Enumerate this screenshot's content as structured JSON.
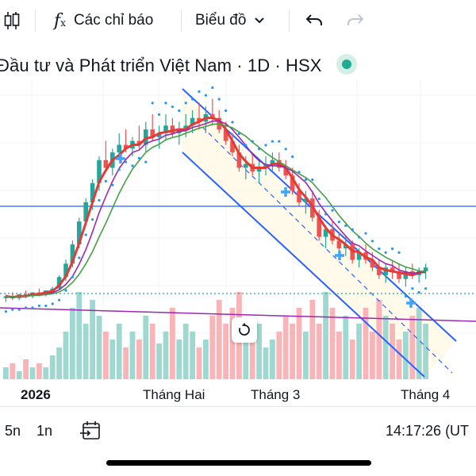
{
  "toolbar": {
    "indicators_label": "Các chỉ báo",
    "chart_type_label": "Biểu đồ",
    "icons": [
      "candles-icon",
      "fx-icon",
      "chevron-down-icon",
      "undo-icon",
      "redo-icon"
    ]
  },
  "symbol": {
    "title": "Đầu tư và Phát triển Việt Nam · 1D · HSX",
    "status_color": "#22ab94"
  },
  "xaxis": {
    "labels": [
      "2026",
      "Tháng Hai",
      "Tháng 3",
      "Tháng 4"
    ]
  },
  "bottom_bar": {
    "range_5y": "5n",
    "range_1y": "1n",
    "time": "14:17:26 (UT"
  },
  "colors": {
    "up": "#26a69a",
    "down": "#ef5350",
    "volume_up": "#9fd8d0",
    "volume_down": "#f8b4b6",
    "channel": "#2962ff",
    "ma_fast": "#e53935",
    "ma_mid": "#9c27b0",
    "ma_slow": "#43a047",
    "horizontal_line": "#2962ff",
    "purple_line": "#9c27b0"
  },
  "chart_data": {
    "type": "candlestick",
    "note_values": "relative price levels (axis not printed)",
    "candles": [
      [
        10,
        12,
        8,
        11
      ],
      [
        11,
        13,
        9,
        10
      ],
      [
        10,
        12,
        9,
        12
      ],
      [
        12,
        14,
        10,
        11
      ],
      [
        11,
        13,
        10,
        13
      ],
      [
        13,
        15,
        11,
        12
      ],
      [
        12,
        14,
        11,
        14
      ],
      [
        14,
        16,
        12,
        15
      ],
      [
        15,
        22,
        14,
        21
      ],
      [
        21,
        30,
        19,
        28
      ],
      [
        28,
        40,
        26,
        38
      ],
      [
        38,
        52,
        36,
        50
      ],
      [
        50,
        62,
        48,
        60
      ],
      [
        60,
        72,
        56,
        70
      ],
      [
        70,
        84,
        66,
        82
      ],
      [
        82,
        92,
        76,
        78
      ],
      [
        78,
        88,
        74,
        86
      ],
      [
        86,
        96,
        82,
        90
      ],
      [
        90,
        98,
        86,
        88
      ],
      [
        88,
        94,
        84,
        92
      ],
      [
        92,
        100,
        88,
        90
      ],
      [
        90,
        102,
        86,
        98
      ],
      [
        98,
        106,
        92,
        94
      ],
      [
        94,
        100,
        88,
        96
      ],
      [
        96,
        106,
        92,
        100
      ],
      [
        100,
        104,
        94,
        96
      ],
      [
        96,
        102,
        90,
        98
      ],
      [
        98,
        106,
        94,
        100
      ],
      [
        100,
        108,
        96,
        104
      ],
      [
        104,
        112,
        98,
        102
      ],
      [
        102,
        110,
        96,
        106
      ],
      [
        106,
        114,
        100,
        104
      ],
      [
        104,
        108,
        96,
        98
      ],
      [
        98,
        102,
        90,
        92
      ],
      [
        92,
        96,
        84,
        86
      ],
      [
        86,
        90,
        76,
        78
      ],
      [
        78,
        84,
        72,
        80
      ],
      [
        80,
        86,
        74,
        76
      ],
      [
        76,
        82,
        70,
        78
      ],
      [
        78,
        84,
        74,
        80
      ],
      [
        80,
        86,
        76,
        82
      ],
      [
        82,
        86,
        76,
        78
      ],
      [
        78,
        82,
        72,
        74
      ],
      [
        74,
        78,
        64,
        66
      ],
      [
        66,
        70,
        58,
        60
      ],
      [
        60,
        66,
        54,
        62
      ],
      [
        62,
        66,
        50,
        52
      ],
      [
        52,
        56,
        40,
        42
      ],
      [
        42,
        48,
        36,
        46
      ],
      [
        46,
        50,
        38,
        40
      ],
      [
        40,
        44,
        34,
        36
      ],
      [
        36,
        42,
        32,
        38
      ],
      [
        38,
        40,
        28,
        30
      ],
      [
        30,
        36,
        26,
        34
      ],
      [
        34,
        38,
        28,
        30
      ],
      [
        30,
        34,
        24,
        26
      ],
      [
        26,
        30,
        20,
        22
      ],
      [
        22,
        28,
        18,
        26
      ],
      [
        26,
        30,
        20,
        24
      ],
      [
        24,
        28,
        18,
        20
      ],
      [
        20,
        26,
        16,
        24
      ],
      [
        24,
        28,
        20,
        22
      ],
      [
        22,
        26,
        18,
        24
      ],
      [
        24,
        28,
        20,
        26
      ]
    ],
    "volume": [
      3,
      4,
      2,
      5,
      3,
      4,
      3,
      6,
      8,
      12,
      18,
      22,
      14,
      20,
      16,
      12,
      10,
      14,
      8,
      12,
      10,
      16,
      14,
      9,
      12,
      18,
      10,
      14,
      12,
      8,
      10,
      16,
      20,
      14,
      18,
      22,
      12,
      10,
      14,
      8,
      10,
      12,
      16,
      14,
      18,
      12,
      20,
      14,
      22,
      18,
      12,
      16,
      10,
      14,
      18,
      12,
      20,
      16,
      14,
      10,
      12,
      16,
      18,
      14
    ],
    "volume_color_up": [
      true,
      false,
      true,
      false,
      true,
      false,
      true,
      true,
      true,
      true,
      true,
      true,
      true,
      true,
      true,
      false,
      true,
      true,
      false,
      true,
      false,
      true,
      false,
      true,
      true,
      false,
      true,
      true,
      true,
      false,
      true,
      false,
      false,
      false,
      false,
      false,
      true,
      false,
      true,
      true,
      true,
      false,
      false,
      false,
      false,
      true,
      false,
      false,
      true,
      false,
      false,
      true,
      false,
      true,
      false,
      false,
      false,
      true,
      false,
      false,
      true,
      false,
      true,
      true
    ]
  }
}
